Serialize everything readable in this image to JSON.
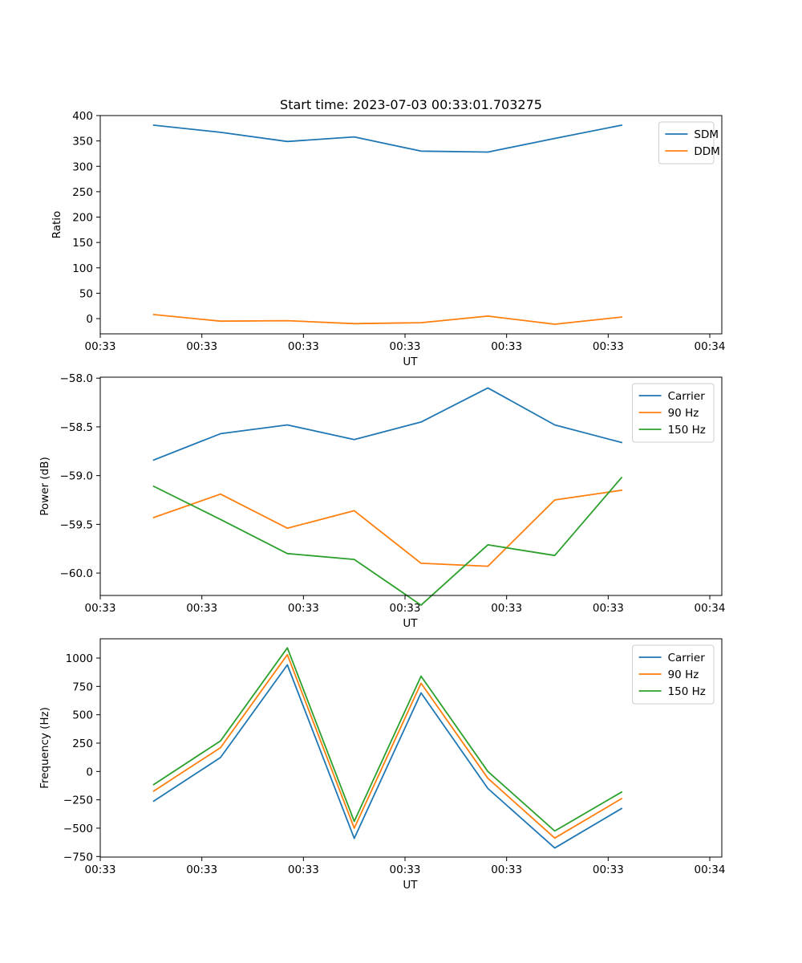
{
  "chart_data": [
    {
      "type": "line",
      "title": "Start time: 2023-07-03 00:33:01.703275",
      "xlabel": "UT",
      "ylabel": "Ratio",
      "x": [
        1,
        2,
        3,
        4,
        5,
        6,
        7,
        8
      ],
      "xlim": [
        0.2,
        9.5
      ],
      "x_ticks": [
        0.2,
        1.72,
        3.24,
        4.76,
        6.28,
        7.8,
        9.32
      ],
      "x_tick_labels": [
        "00:33",
        "00:33",
        "00:33",
        "00:33",
        "00:33",
        "00:33",
        "00:34"
      ],
      "ylim": [
        -30,
        400
      ],
      "y_ticks": [
        0,
        50,
        100,
        150,
        200,
        250,
        300,
        350,
        400
      ],
      "y_tick_labels": [
        "0",
        "50",
        "100",
        "150",
        "200",
        "250",
        "300",
        "350",
        "400"
      ],
      "legend_position": "top-right",
      "series": [
        {
          "name": "SDM",
          "color": "#1f77b4",
          "values": [
            381,
            367,
            349,
            358,
            330,
            328,
            355,
            381
          ]
        },
        {
          "name": "DDM",
          "color": "#ff7f0e",
          "values": [
            8,
            -5,
            -4,
            -10,
            -8,
            5,
            -11,
            3
          ]
        }
      ]
    },
    {
      "type": "line",
      "title": "",
      "xlabel": "UT",
      "ylabel": "Power (dB)",
      "x": [
        1,
        2,
        3,
        4,
        5,
        6,
        7,
        8
      ],
      "xlim": [
        0.2,
        9.5
      ],
      "x_ticks": [
        0.2,
        1.72,
        3.24,
        4.76,
        6.28,
        7.8,
        9.32
      ],
      "x_tick_labels": [
        "00:33",
        "00:33",
        "00:33",
        "00:33",
        "00:33",
        "00:33",
        "00:34"
      ],
      "ylim": [
        -60.23,
        -57.99
      ],
      "y_ticks": [
        -60.0,
        -59.5,
        -59.0,
        -58.5,
        -58.0
      ],
      "y_tick_labels": [
        "−60.0",
        "−59.5",
        "−59.0",
        "−58.5",
        "−58.0"
      ],
      "legend_position": "top-right",
      "series": [
        {
          "name": "Carrier",
          "color": "#1f77b4",
          "values": [
            -58.84,
            -58.57,
            -58.48,
            -58.63,
            -58.45,
            -58.1,
            -58.48,
            -58.66
          ]
        },
        {
          "name": "90 Hz",
          "color": "#ff7f0e",
          "values": [
            -59.43,
            -59.19,
            -59.54,
            -59.36,
            -59.9,
            -59.93,
            -59.25,
            -59.15
          ]
        },
        {
          "name": "150 Hz",
          "color": "#2ca02c",
          "values": [
            -59.11,
            -59.45,
            -59.8,
            -59.86,
            -60.33,
            -59.71,
            -59.82,
            -59.02
          ]
        }
      ]
    },
    {
      "type": "line",
      "title": "",
      "xlabel": "UT",
      "ylabel": "Frequency (Hz)",
      "x": [
        1,
        2,
        3,
        4,
        5,
        6,
        7,
        8
      ],
      "xlim": [
        0.2,
        9.5
      ],
      "x_ticks": [
        0.2,
        1.72,
        3.24,
        4.76,
        6.28,
        7.8,
        9.32
      ],
      "x_tick_labels": [
        "00:33",
        "00:33",
        "00:33",
        "00:33",
        "00:33",
        "00:33",
        "00:34"
      ],
      "ylim": [
        -755,
        1170
      ],
      "y_ticks": [
        -750,
        -500,
        -250,
        0,
        250,
        500,
        750,
        1000
      ],
      "y_tick_labels": [
        "−750",
        "−500",
        "−250",
        "0",
        "250",
        "500",
        "750",
        "1000"
      ],
      "legend_position": "top-right",
      "series": [
        {
          "name": "Carrier",
          "color": "#1f77b4",
          "values": [
            -262,
            123,
            940,
            -590,
            693,
            -150,
            -675,
            -327
          ]
        },
        {
          "name": "90 Hz",
          "color": "#ff7f0e",
          "values": [
            -173,
            210,
            1030,
            -500,
            778,
            -60,
            -587,
            -240
          ]
        },
        {
          "name": "150 Hz",
          "color": "#2ca02c",
          "values": [
            -115,
            270,
            1090,
            -440,
            840,
            0,
            -525,
            -182
          ]
        }
      ]
    }
  ]
}
